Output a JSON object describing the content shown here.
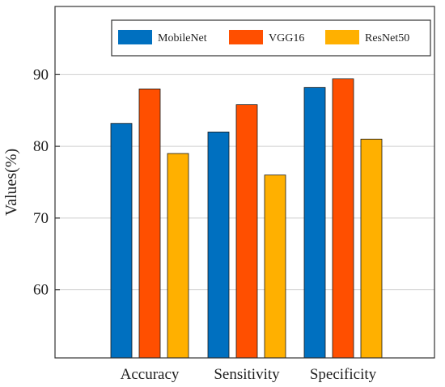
{
  "chart_data": {
    "type": "bar",
    "title": "",
    "xlabel": "",
    "ylabel": "Values(%)",
    "categories": [
      "Accuracy",
      "Sensitivity",
      "Specificity"
    ],
    "series": [
      {
        "name": "MobileNet",
        "color": "#0070C0",
        "values": [
          83.2,
          82.0,
          88.2
        ]
      },
      {
        "name": "VGG16",
        "color": "#FF4F00",
        "values": [
          88.0,
          85.8,
          89.4
        ]
      },
      {
        "name": "ResNet50",
        "color": "#FFB000",
        "values": [
          79.0,
          76.0,
          81.0
        ]
      }
    ],
    "ylim": [
      50.5,
      99.5
    ],
    "yticks": [
      60,
      70,
      80,
      90
    ],
    "grid": true,
    "legend_position": "top-right"
  }
}
